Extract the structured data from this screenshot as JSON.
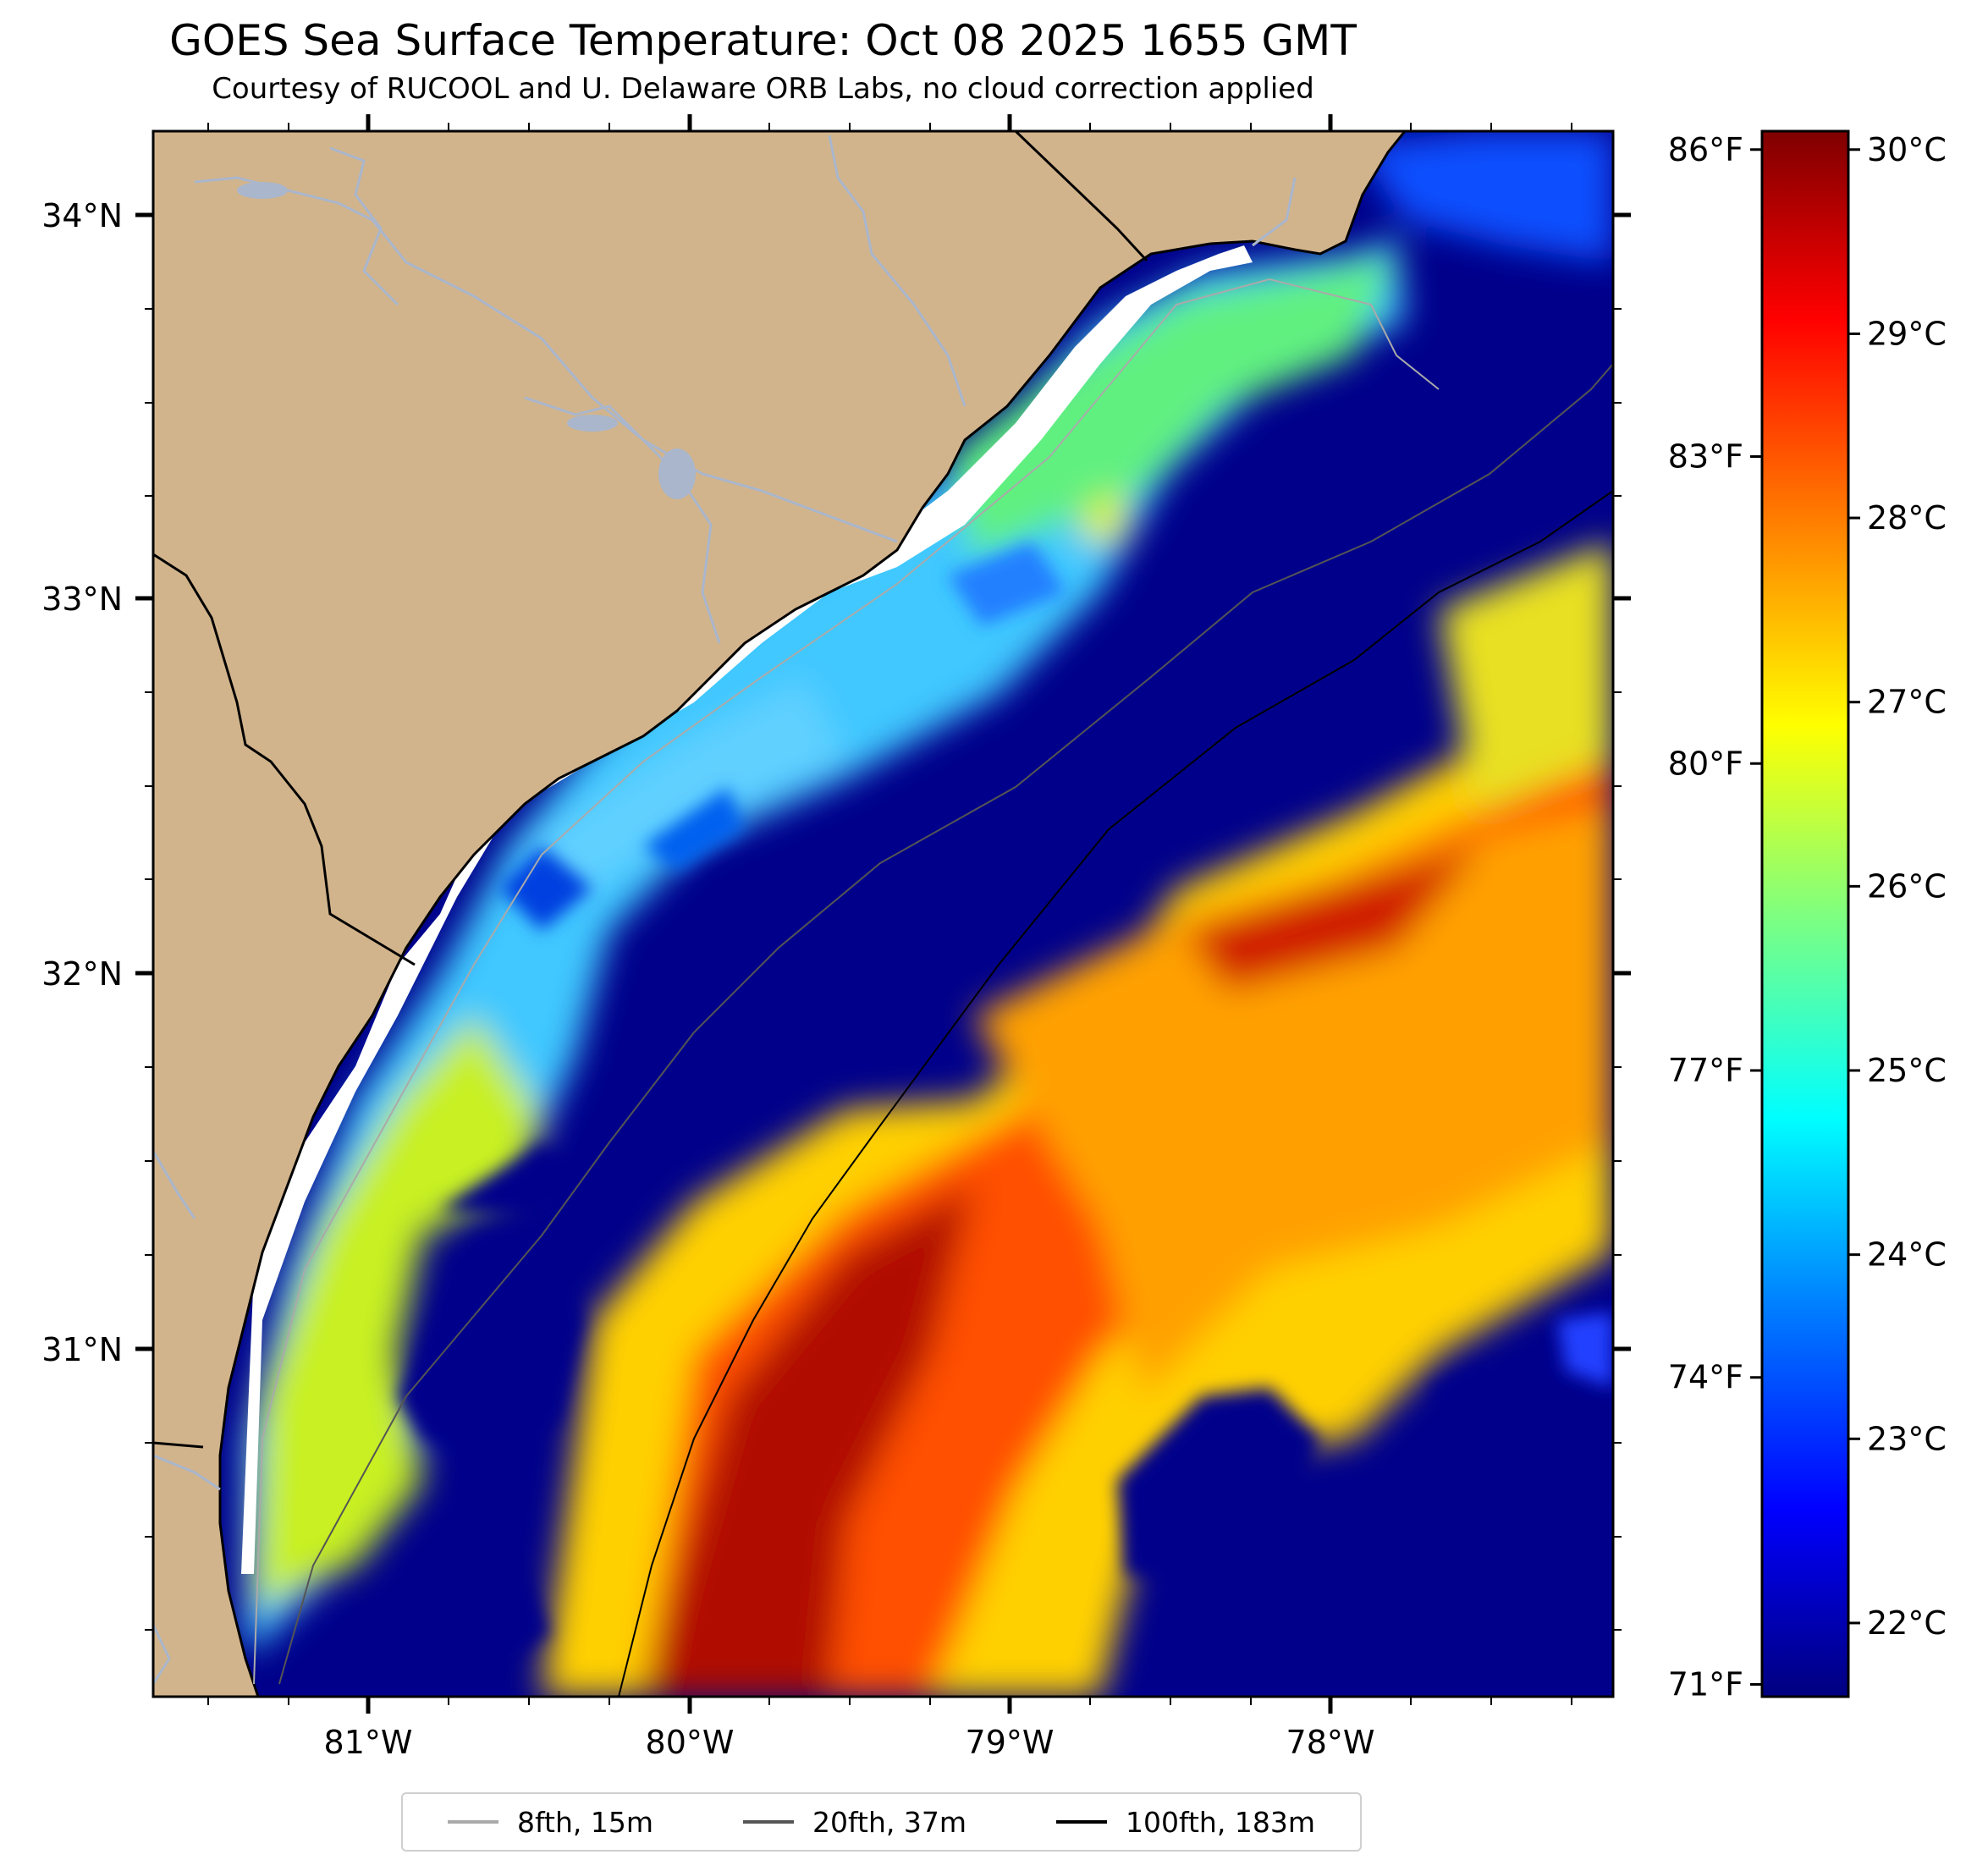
{
  "title": "GOES Sea Surface Temperature: Oct 08 2025 1655 GMT",
  "subtitle": "Courtesy of RUCOOL and U. Delaware ORB Labs, no cloud correction applied",
  "map": {
    "lon_range": [
      -81.67,
      -77.12
    ],
    "lat_range": [
      30.09,
      34.22
    ],
    "lat_ticks": [
      "34°N",
      "33°N",
      "32°N",
      "31°N"
    ],
    "lon_ticks": [
      "81°W",
      "80°W",
      "79°W",
      "78°W"
    ],
    "colors": {
      "land": "#d2b48c",
      "cold_water": "#00008b",
      "coast": "#000000",
      "rivers": "#a9b6cc"
    }
  },
  "chart_data": {
    "type": "heatmap",
    "variable": "Sea Surface Temperature",
    "colormap": "jet",
    "units": [
      "°C",
      "°F"
    ],
    "range_c": [
      21.6,
      30.1
    ],
    "colorbar_c_ticks": [
      "30°C",
      "29°C",
      "28°C",
      "27°C",
      "26°C",
      "25°C",
      "24°C",
      "23°C",
      "22°C"
    ],
    "colorbar_c_values": [
      30,
      29,
      28,
      27,
      26,
      25,
      24,
      23,
      22
    ],
    "colorbar_f_ticks": [
      "86°F",
      "83°F",
      "80°F",
      "77°F",
      "74°F",
      "71°F"
    ],
    "colorbar_f_values": [
      86,
      83,
      80,
      77,
      74,
      71
    ],
    "gradient": [
      "#00007f",
      "#0000ff",
      "#007fff",
      "#00ffff",
      "#7fff7f",
      "#ffff00",
      "#ff7f00",
      "#ff0000",
      "#7f0000"
    ]
  },
  "legend": [
    {
      "label": "8fth, 15m",
      "color": "#aaaaaa"
    },
    {
      "label": "20fth, 37m",
      "color": "#555555"
    },
    {
      "label": "100fth, 183m",
      "color": "#000000"
    }
  ]
}
